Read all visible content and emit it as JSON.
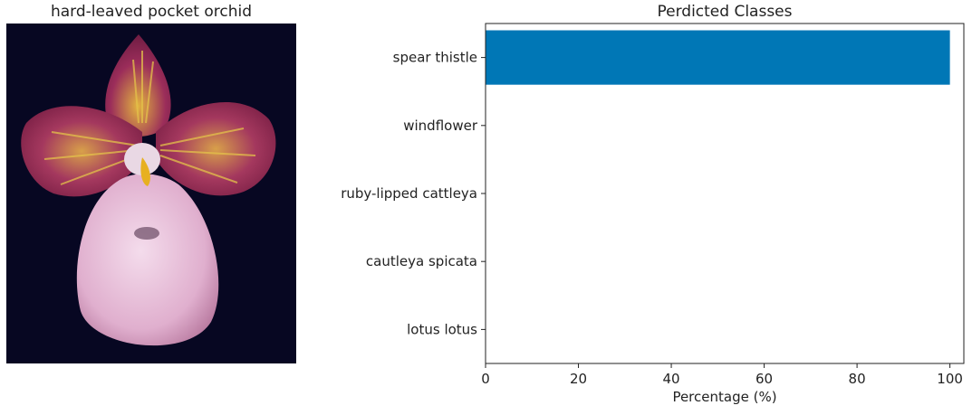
{
  "image_panel": {
    "title": "hard-leaved pocket orchid"
  },
  "chart_data": {
    "type": "bar",
    "orientation": "horizontal",
    "title": "Perdicted Classes",
    "xlabel": "Percentage (%)",
    "ylabel": "",
    "categories": [
      "spear thistle",
      "windflower",
      "ruby-lipped cattleya",
      "cautleya spicata",
      "lotus lotus"
    ],
    "values": [
      100,
      0,
      0,
      0,
      0
    ],
    "xlim": [
      0,
      103
    ],
    "xticks": [
      0,
      20,
      40,
      60,
      80,
      100
    ],
    "bar_color": "#0077b6",
    "grid": false
  }
}
